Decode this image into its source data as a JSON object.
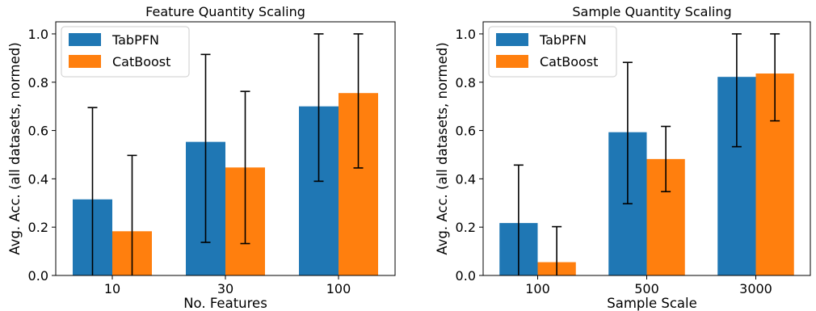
{
  "colors": {
    "tabpfn": "#1f77b4",
    "catboost": "#ff7f0e",
    "errorbar": "#000000",
    "axis": "#000000"
  },
  "chart_data": [
    {
      "type": "bar",
      "title": "Feature Quantity Scaling",
      "xlabel": "No. Features",
      "ylabel": "Avg. Acc. (all datasets, normed)",
      "categories": [
        "10",
        "30",
        "100"
      ],
      "ylim": [
        0,
        1.05
      ],
      "yticks": [
        0.0,
        0.2,
        0.4,
        0.6,
        0.8,
        1.0
      ],
      "ytick_labels": [
        "0.0",
        "0.2",
        "0.4",
        "0.6",
        "0.8",
        "1.0"
      ],
      "legend_position": "top-left",
      "grid": false,
      "series": [
        {
          "name": "TabPFN",
          "color_key": "tabpfn",
          "values": [
            0.315,
            0.553,
            0.7
          ],
          "error_low": [
            0.0,
            0.137,
            0.39
          ],
          "error_high": [
            0.695,
            0.915,
            1.0
          ]
        },
        {
          "name": "CatBoost",
          "color_key": "catboost",
          "values": [
            0.183,
            0.447,
            0.755
          ],
          "error_low": [
            0.0,
            0.132,
            0.445
          ],
          "error_high": [
            0.497,
            0.762,
            1.0
          ]
        }
      ]
    },
    {
      "type": "bar",
      "title": "Sample Quantity Scaling",
      "xlabel": "Sample Scale",
      "ylabel": "Avg. Acc. (all datasets, normed)",
      "categories": [
        "100",
        "500",
        "3000"
      ],
      "ylim": [
        0,
        1.05
      ],
      "yticks": [
        0.0,
        0.2,
        0.4,
        0.6,
        0.8,
        1.0
      ],
      "ytick_labels": [
        "0.0",
        "0.2",
        "0.4",
        "0.6",
        "0.8",
        "1.0"
      ],
      "legend_position": "top-left",
      "grid": false,
      "series": [
        {
          "name": "TabPFN",
          "color_key": "tabpfn",
          "values": [
            0.217,
            0.593,
            0.822
          ],
          "error_low": [
            0.0,
            0.297,
            0.533
          ],
          "error_high": [
            0.457,
            0.882,
            1.0
          ]
        },
        {
          "name": "CatBoost",
          "color_key": "catboost",
          "values": [
            0.055,
            0.482,
            0.836
          ],
          "error_low": [
            0.0,
            0.347,
            0.64
          ],
          "error_high": [
            0.202,
            0.617,
            1.0
          ]
        }
      ]
    }
  ]
}
